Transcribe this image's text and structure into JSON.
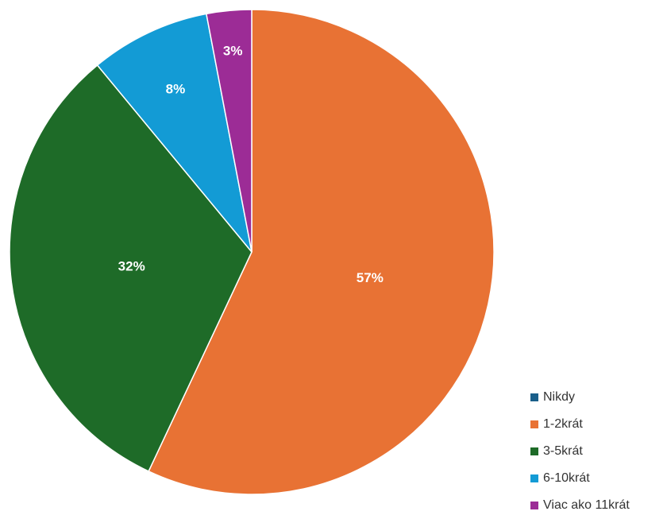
{
  "chart_data": {
    "type": "pie",
    "title": "",
    "slices": [
      {
        "label": "Nikdy",
        "value": 0,
        "display": "",
        "color": "#1a5f8a"
      },
      {
        "label": "1-2krát",
        "value": 57,
        "display": "57%",
        "color": "#e87234"
      },
      {
        "label": "3-5krát",
        "value": 32,
        "display": "32%",
        "color": "#1e6b28"
      },
      {
        "label": "6-10krát",
        "value": 8,
        "display": "8%",
        "color": "#139bd5"
      },
      {
        "label": "Viac ako 11krát",
        "value": 3,
        "display": "3%",
        "color": "#9c2c96"
      }
    ],
    "legend_position": "bottom-right",
    "start_angle_deg": 0,
    "direction": "clockwise"
  }
}
